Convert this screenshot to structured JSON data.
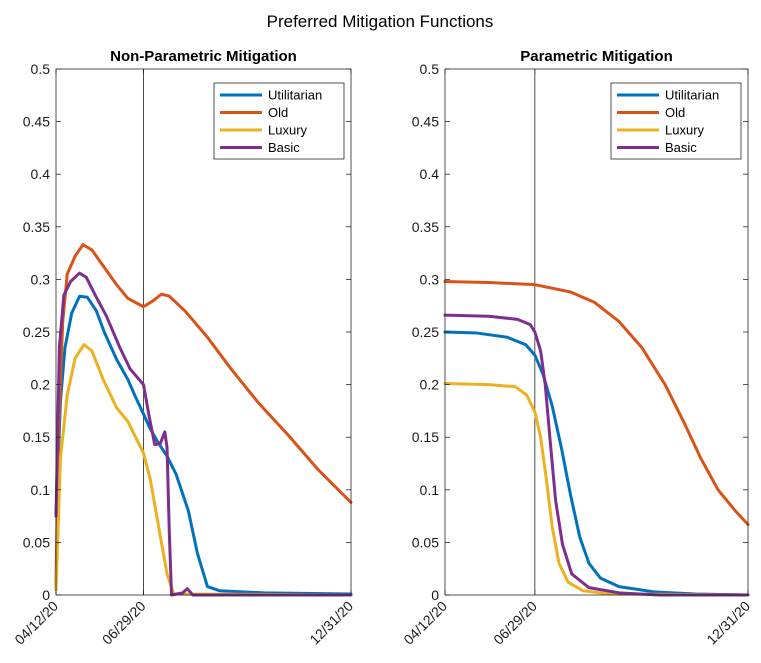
{
  "figure_title": "Preferred Mitigation Functions",
  "colors": {
    "Utilitarian": "#0072BD",
    "Old": "#D95319",
    "Luxury": "#EDB120",
    "Basic": "#7E2F8E"
  },
  "chart_data": [
    {
      "type": "line",
      "title": "Non-Parametric Mitigation",
      "xlabel": "",
      "ylabel": "",
      "x_ticks": [
        "04/12/20",
        "06/29/20",
        "12/31/20"
      ],
      "x_range": [
        "04/12/20",
        "12/31/20"
      ],
      "ylim": [
        0,
        0.5
      ],
      "y_ticks": [
        "0",
        "0.05",
        "0.1",
        "0.15",
        "0.2",
        "0.25",
        "0.3",
        "0.35",
        "0.4",
        "0.45",
        "0.5"
      ],
      "vline": "06/29/20",
      "legend_position": "top-right",
      "grid": false,
      "series": [
        {
          "name": "Utilitarian",
          "points": [
            [
              "04/12/20",
              0.075
            ],
            [
              "04/16/20",
              0.185
            ],
            [
              "04/20/20",
              0.235
            ],
            [
              "04/26/20",
              0.268
            ],
            [
              "05/03/20",
              0.284
            ],
            [
              "05/10/20",
              0.283
            ],
            [
              "05/18/20",
              0.27
            ],
            [
              "05/25/20",
              0.25
            ],
            [
              "06/05/20",
              0.224
            ],
            [
              "06/15/20",
              0.205
            ],
            [
              "06/22/20",
              0.188
            ],
            [
              "06/29/20",
              0.172
            ],
            [
              "07/05/20",
              0.158
            ],
            [
              "07/12/20",
              0.145
            ],
            [
              "07/20/20",
              0.132
            ],
            [
              "07/28/20",
              0.115
            ],
            [
              "08/08/20",
              0.08
            ],
            [
              "08/16/20",
              0.04
            ],
            [
              "08/25/20",
              0.008
            ],
            [
              "09/05/20",
              0.004
            ],
            [
              "10/15/20",
              0.002
            ],
            [
              "12/31/20",
              0.001
            ]
          ]
        },
        {
          "name": "Old",
          "points": [
            [
              "04/12/20",
              0.01
            ],
            [
              "04/14/20",
              0.15
            ],
            [
              "04/18/20",
              0.26
            ],
            [
              "04/22/20",
              0.305
            ],
            [
              "04/29/20",
              0.322
            ],
            [
              "05/06/20",
              0.333
            ],
            [
              "05/14/20",
              0.328
            ],
            [
              "05/24/20",
              0.313
            ],
            [
              "06/05/20",
              0.295
            ],
            [
              "06/15/20",
              0.282
            ],
            [
              "06/29/20",
              0.274
            ],
            [
              "07/08/20",
              0.28
            ],
            [
              "07/15/20",
              0.286
            ],
            [
              "07/22/20",
              0.284
            ],
            [
              "08/05/20",
              0.27
            ],
            [
              "08/25/20",
              0.245
            ],
            [
              "09/15/20",
              0.215
            ],
            [
              "10/10/20",
              0.182
            ],
            [
              "11/05/20",
              0.152
            ],
            [
              "12/01/20",
              0.12
            ],
            [
              "12/31/20",
              0.088
            ]
          ]
        },
        {
          "name": "Luxury",
          "points": [
            [
              "04/12/20",
              0.005
            ],
            [
              "04/16/20",
              0.13
            ],
            [
              "04/22/20",
              0.19
            ],
            [
              "04/29/20",
              0.225
            ],
            [
              "05/07/20",
              0.238
            ],
            [
              "05/14/20",
              0.232
            ],
            [
              "05/24/20",
              0.205
            ],
            [
              "06/05/20",
              0.178
            ],
            [
              "06/15/20",
              0.165
            ],
            [
              "06/29/20",
              0.135
            ],
            [
              "07/05/20",
              0.11
            ],
            [
              "07/12/20",
              0.068
            ],
            [
              "07/20/20",
              0.02
            ],
            [
              "07/26/20",
              0.001
            ],
            [
              "12/31/20",
              0.0
            ]
          ]
        },
        {
          "name": "Basic",
          "points": [
            [
              "04/12/20",
              0.075
            ],
            [
              "04/15/20",
              0.235
            ],
            [
              "04/19/20",
              0.285
            ],
            [
              "04/25/20",
              0.298
            ],
            [
              "05/03/20",
              0.306
            ],
            [
              "05/09/20",
              0.302
            ],
            [
              "05/17/20",
              0.285
            ],
            [
              "05/27/20",
              0.265
            ],
            [
              "06/08/20",
              0.235
            ],
            [
              "06/17/20",
              0.215
            ],
            [
              "06/29/20",
              0.2
            ],
            [
              "07/04/20",
              0.17
            ],
            [
              "07/09/20",
              0.143
            ],
            [
              "07/14/20",
              0.144
            ],
            [
              "07/18/20",
              0.155
            ],
            [
              "07/20/20",
              0.14
            ],
            [
              "07/22/20",
              0.06
            ],
            [
              "07/24/20",
              0.0
            ],
            [
              "08/03/20",
              0.002
            ],
            [
              "08/07/20",
              0.006
            ],
            [
              "08/12/20",
              0.0
            ],
            [
              "12/31/20",
              0.0
            ]
          ]
        }
      ]
    },
    {
      "type": "line",
      "title": "Parametric Mitigation",
      "xlabel": "",
      "ylabel": "",
      "x_ticks": [
        "04/12/20",
        "06/29/20",
        "12/31/20"
      ],
      "x_range": [
        "04/12/20",
        "12/31/20"
      ],
      "ylim": [
        0,
        0.5
      ],
      "y_ticks": [
        "0",
        "0.05",
        "0.1",
        "0.15",
        "0.2",
        "0.25",
        "0.3",
        "0.35",
        "0.4",
        "0.45",
        "0.5"
      ],
      "vline": "06/29/20",
      "legend_position": "top-right",
      "grid": false,
      "series": [
        {
          "name": "Utilitarian",
          "points": [
            [
              "04/12/20",
              0.25
            ],
            [
              "05/10/20",
              0.249
            ],
            [
              "06/05/20",
              0.245
            ],
            [
              "06/21/20",
              0.238
            ],
            [
              "06/29/20",
              0.228
            ],
            [
              "07/06/20",
              0.21
            ],
            [
              "07/14/20",
              0.18
            ],
            [
              "07/22/20",
              0.14
            ],
            [
              "07/30/20",
              0.095
            ],
            [
              "08/07/20",
              0.055
            ],
            [
              "08/15/20",
              0.03
            ],
            [
              "08/25/20",
              0.016
            ],
            [
              "09/10/20",
              0.008
            ],
            [
              "10/10/20",
              0.003
            ],
            [
              "11/15/20",
              0.001
            ],
            [
              "12/31/20",
              0.0
            ]
          ]
        },
        {
          "name": "Old",
          "points": [
            [
              "04/12/20",
              0.298
            ],
            [
              "05/20/20",
              0.297
            ],
            [
              "06/29/20",
              0.295
            ],
            [
              "07/30/20",
              0.288
            ],
            [
              "08/20/20",
              0.278
            ],
            [
              "09/10/20",
              0.26
            ],
            [
              "09/30/20",
              0.235
            ],
            [
              "10/20/20",
              0.2
            ],
            [
              "11/05/20",
              0.165
            ],
            [
              "11/20/20",
              0.13
            ],
            [
              "12/05/20",
              0.1
            ],
            [
              "12/20/20",
              0.08
            ],
            [
              "12/31/20",
              0.067
            ]
          ]
        },
        {
          "name": "Luxury",
          "points": [
            [
              "04/12/20",
              0.201
            ],
            [
              "05/20/20",
              0.2
            ],
            [
              "06/12/20",
              0.198
            ],
            [
              "06/22/20",
              0.19
            ],
            [
              "06/29/20",
              0.174
            ],
            [
              "07/04/20",
              0.15
            ],
            [
              "07/09/20",
              0.11
            ],
            [
              "07/14/20",
              0.065
            ],
            [
              "07/20/20",
              0.03
            ],
            [
              "07/28/20",
              0.012
            ],
            [
              "08/10/20",
              0.004
            ],
            [
              "09/01/20",
              0.001
            ],
            [
              "12/31/20",
              0.0
            ]
          ]
        },
        {
          "name": "Basic",
          "points": [
            [
              "04/12/20",
              0.266
            ],
            [
              "05/20/20",
              0.265
            ],
            [
              "06/14/20",
              0.262
            ],
            [
              "06/25/20",
              0.257
            ],
            [
              "06/29/20",
              0.25
            ],
            [
              "07/04/20",
              0.232
            ],
            [
              "07/08/20",
              0.2
            ],
            [
              "07/12/20",
              0.15
            ],
            [
              "07/17/20",
              0.09
            ],
            [
              "07/23/20",
              0.048
            ],
            [
              "07/31/20",
              0.02
            ],
            [
              "08/15/20",
              0.007
            ],
            [
              "09/10/20",
              0.002
            ],
            [
              "10/15/20",
              0.0
            ],
            [
              "12/31/20",
              0.0
            ]
          ]
        }
      ]
    }
  ]
}
